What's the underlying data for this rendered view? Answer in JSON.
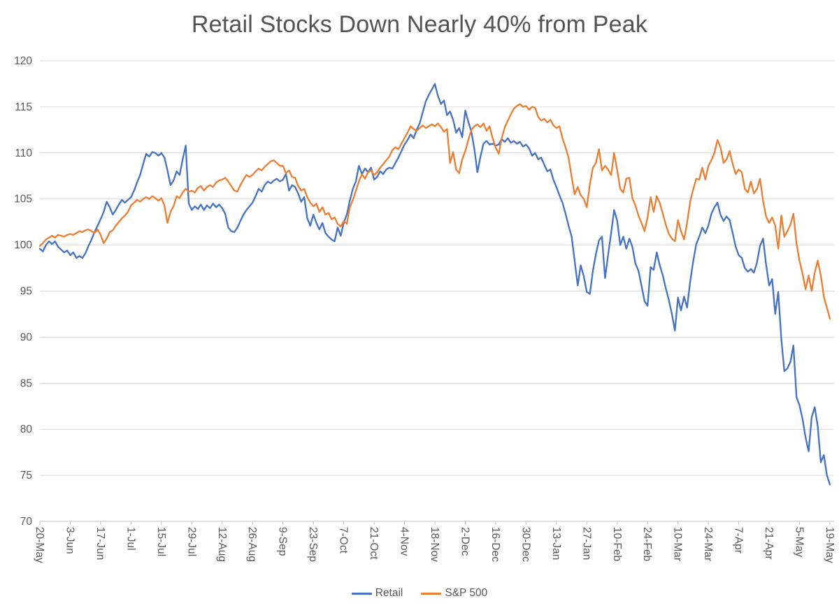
{
  "page": {
    "background": "#FFFFFF"
  },
  "chart_data": {
    "type": "line",
    "title": "Retail Stocks Down Nearly 40% from Peak",
    "xlabel": "",
    "ylabel": "",
    "ylim": [
      70,
      120
    ],
    "ytick_step": 5,
    "yticks": [
      70,
      75,
      80,
      85,
      90,
      95,
      100,
      105,
      110,
      115,
      120
    ],
    "grid": true,
    "legend_position": "bottom",
    "gridline_color": "#D9D9D9",
    "axis_color": "#BFBFBF",
    "text_color": "#595959",
    "x_label_every": 10,
    "x_labels": [
      "20-May",
      "3-Jun",
      "17-Jun",
      "1-Jul",
      "15-Jul",
      "29-Jul",
      "12-Aug",
      "26-Aug",
      "9-Sep",
      "23-Sep",
      "7-Oct",
      "21-Oct",
      "4-Nov",
      "18-Nov",
      "2-Dec",
      "16-Dec",
      "30-Dec",
      "13-Jan",
      "27-Jan",
      "10-Feb",
      "24-Feb",
      "10-Mar",
      "24-Mar",
      "7-Apr",
      "21-Apr",
      "5-May",
      "19-May"
    ],
    "series": [
      {
        "name": "Retail",
        "color": "#4472C4",
        "values": [
          99.6,
          99.3,
          100.0,
          100.4,
          100.1,
          100.4,
          99.8,
          99.5,
          99.2,
          99.4,
          98.9,
          99.2,
          98.6,
          98.8,
          98.6,
          99.1,
          99.9,
          100.6,
          101.4,
          102.1,
          102.8,
          103.6,
          104.7,
          104.1,
          103.3,
          103.8,
          104.4,
          104.9,
          104.6,
          104.9,
          105.2,
          105.9,
          106.8,
          107.6,
          108.8,
          109.9,
          109.6,
          110.1,
          110.0,
          109.7,
          110.0,
          109.5,
          108.1,
          106.5,
          107.0,
          108.0,
          107.6,
          109.3,
          110.8,
          104.5,
          103.8,
          104.2,
          103.9,
          104.4,
          103.8,
          104.3,
          104.0,
          104.5,
          104.1,
          104.4,
          104.0,
          103.4,
          101.9,
          101.5,
          101.4,
          101.9,
          102.6,
          103.3,
          103.8,
          104.2,
          104.6,
          105.3,
          106.1,
          105.8,
          106.5,
          106.9,
          106.7,
          107.0,
          107.2,
          106.9,
          107.1,
          107.7,
          105.9,
          106.5,
          106.3,
          105.6,
          104.7,
          105.2,
          102.9,
          102.1,
          103.3,
          102.4,
          101.7,
          102.4,
          101.3,
          100.9,
          100.6,
          100.4,
          101.9,
          101.0,
          102.4,
          103.3,
          104.8,
          106.1,
          106.9,
          108.6,
          107.7,
          108.3,
          107.9,
          108.4,
          107.1,
          107.4,
          108.0,
          107.7,
          108.2,
          108.4,
          108.3,
          108.9,
          109.5,
          110.2,
          110.9,
          111.4,
          112.0,
          111.6,
          112.5,
          113.2,
          114.4,
          115.6,
          116.3,
          116.9,
          117.5,
          116.2,
          115.3,
          115.7,
          114.1,
          114.5,
          113.6,
          112.2,
          112.7,
          111.7,
          114.6,
          113.4,
          112.3,
          110.4,
          107.9,
          109.6,
          111.0,
          111.3,
          110.9,
          111.0,
          110.8,
          110.9,
          111.5,
          111.2,
          111.6,
          111.1,
          111.3,
          111.0,
          111.2,
          110.7,
          110.9,
          110.5,
          109.7,
          110.0,
          109.3,
          109.5,
          108.7,
          108.0,
          108.2,
          107.1,
          106.3,
          105.4,
          104.6,
          103.4,
          102.1,
          100.9,
          98.3,
          95.6,
          97.8,
          96.6,
          94.9,
          94.7,
          97.2,
          99.0,
          100.5,
          100.9,
          96.4,
          98.9,
          101.3,
          103.8,
          102.6,
          100.0,
          100.9,
          99.6,
          100.7,
          99.8,
          98.0,
          97.2,
          95.6,
          93.9,
          93.4,
          97.6,
          97.3,
          99.2,
          97.8,
          96.7,
          95.3,
          94.0,
          92.5,
          90.7,
          94.3,
          92.9,
          94.4,
          93.2,
          96.0,
          98.2,
          100.1,
          100.9,
          101.9,
          101.3,
          102.1,
          103.4,
          104.1,
          104.6,
          103.3,
          102.6,
          103.1,
          102.7,
          101.3,
          99.8,
          98.9,
          98.6,
          97.5,
          97.1,
          97.4,
          97.0,
          98.1,
          99.9,
          100.7,
          97.9,
          95.6,
          96.3,
          92.5,
          94.9,
          89.8,
          86.3,
          86.6,
          87.3,
          89.1,
          83.5,
          82.6,
          81.1,
          79.1,
          77.6,
          81.3,
          82.4,
          80.3,
          76.4,
          77.2,
          75.0,
          74.0
        ]
      },
      {
        "name": "S&P 500",
        "color": "#ED7D31",
        "values": [
          99.9,
          100.2,
          100.6,
          100.8,
          101.0,
          100.8,
          101.1,
          101.0,
          100.9,
          101.1,
          101.2,
          101.1,
          101.3,
          101.5,
          101.4,
          101.6,
          101.7,
          101.5,
          101.3,
          101.7,
          101.1,
          100.2,
          100.7,
          101.4,
          101.6,
          102.1,
          102.5,
          102.9,
          103.2,
          103.6,
          104.3,
          104.6,
          104.9,
          104.7,
          105.0,
          105.2,
          105.0,
          105.3,
          105.1,
          104.8,
          105.1,
          104.3,
          102.4,
          103.6,
          104.2,
          105.3,
          105.1,
          105.7,
          106.1,
          105.8,
          105.9,
          105.7,
          106.2,
          106.4,
          105.9,
          106.3,
          106.5,
          106.3,
          106.8,
          107.0,
          107.1,
          107.3,
          106.9,
          106.4,
          105.9,
          105.8,
          106.5,
          107.1,
          107.6,
          107.4,
          107.6,
          108.0,
          108.3,
          108.1,
          108.5,
          108.8,
          109.1,
          109.2,
          108.9,
          108.6,
          108.6,
          107.8,
          108.1,
          107.4,
          107.3,
          106.4,
          105.9,
          106.1,
          105.2,
          104.6,
          104.2,
          104.5,
          103.6,
          104.1,
          103.3,
          103.5,
          102.8,
          103.0,
          102.3,
          102.0,
          102.6,
          102.3,
          104.1,
          104.9,
          105.9,
          106.9,
          107.7,
          107.2,
          107.9,
          108.1,
          107.6,
          107.9,
          108.4,
          108.8,
          109.2,
          109.6,
          110.3,
          110.6,
          110.4,
          111.0,
          111.6,
          112.2,
          112.9,
          112.6,
          112.4,
          112.7,
          113.0,
          112.7,
          112.9,
          113.1,
          112.9,
          113.2,
          112.8,
          112.3,
          112.6,
          108.9,
          110.1,
          108.2,
          107.8,
          109.3,
          110.2,
          111.4,
          112.5,
          112.9,
          113.1,
          112.8,
          113.2,
          112.4,
          112.9,
          111.6,
          110.6,
          109.9,
          111.6,
          112.8,
          113.5,
          114.2,
          114.8,
          115.1,
          115.3,
          115.0,
          115.1,
          114.7,
          115.0,
          114.9,
          113.9,
          113.5,
          113.7,
          113.3,
          113.6,
          113.0,
          112.7,
          112.9,
          111.6,
          110.6,
          109.5,
          107.4,
          105.5,
          106.3,
          105.4,
          105.0,
          104.1,
          106.6,
          108.4,
          108.9,
          110.4,
          108.1,
          108.6,
          108.2,
          107.6,
          110.0,
          108.1,
          106.1,
          105.7,
          107.2,
          107.3,
          105.1,
          104.3,
          103.2,
          102.4,
          101.5,
          103.0,
          105.2,
          103.6,
          105.3,
          104.6,
          103.4,
          102.2,
          101.2,
          100.7,
          100.4,
          102.7,
          101.5,
          100.6,
          102.4,
          104.7,
          106.0,
          107.2,
          107.1,
          108.4,
          107.1,
          108.6,
          109.2,
          110.0,
          111.4,
          110.6,
          108.9,
          109.3,
          110.2,
          108.8,
          107.7,
          108.2,
          107.9,
          106.1,
          105.7,
          106.9,
          105.6,
          106.1,
          107.2,
          104.8,
          103.1,
          102.4,
          103.0,
          102.1,
          99.6,
          103.2,
          100.9,
          101.5,
          102.2,
          103.4,
          100.2,
          98.3,
          96.9,
          95.2,
          96.7,
          95.0,
          97.0,
          98.3,
          96.7,
          94.4,
          93.2,
          92.0
        ]
      }
    ]
  }
}
